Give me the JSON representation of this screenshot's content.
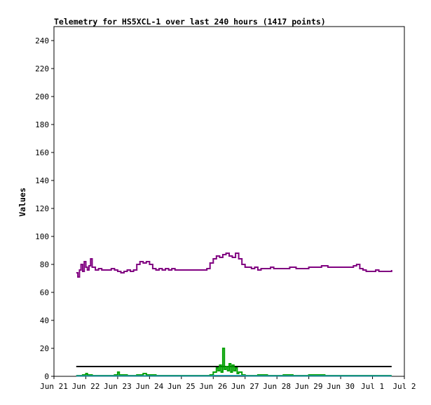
{
  "chart_data": {
    "type": "line",
    "title": "Telemetry for HS5XCL-1 over last 240 hours (1417 points)",
    "xlabel": "",
    "ylabel": "Values",
    "ylim": [
      0,
      250
    ],
    "yticks": [
      0,
      20,
      40,
      60,
      80,
      100,
      120,
      140,
      160,
      180,
      200,
      220,
      240
    ],
    "xlim": [
      0,
      11
    ],
    "xticks": [
      {
        "label": "Jun 21",
        "x": 0
      },
      {
        "label": "Jun 22",
        "x": 1
      },
      {
        "label": "Jun 23",
        "x": 2
      },
      {
        "label": "Jun 24",
        "x": 3
      },
      {
        "label": "Jun 25",
        "x": 4
      },
      {
        "label": "Jun 26",
        "x": 5
      },
      {
        "label": "Jun 27",
        "x": 6
      },
      {
        "label": "Jun 28",
        "x": 7
      },
      {
        "label": "Jun 29",
        "x": 8
      },
      {
        "label": "Jun 30",
        "x": 9
      },
      {
        "label": "Jul 1",
        "x": 10
      },
      {
        "label": "Jul 2",
        "x": 11
      }
    ],
    "grid": false,
    "legend": "none",
    "series": [
      {
        "color": "#800080",
        "points": [
          [
            0.7,
            74
          ],
          [
            0.75,
            71
          ],
          [
            0.8,
            76
          ],
          [
            0.85,
            80
          ],
          [
            0.9,
            75
          ],
          [
            0.95,
            82
          ],
          [
            1.0,
            78
          ],
          [
            1.05,
            76
          ],
          [
            1.1,
            79
          ],
          [
            1.15,
            84
          ],
          [
            1.2,
            78
          ],
          [
            1.3,
            76
          ],
          [
            1.4,
            77
          ],
          [
            1.5,
            76
          ],
          [
            1.6,
            76
          ],
          [
            1.7,
            76
          ],
          [
            1.8,
            77
          ],
          [
            1.9,
            76
          ],
          [
            2.0,
            75
          ],
          [
            2.1,
            74
          ],
          [
            2.2,
            75
          ],
          [
            2.3,
            76
          ],
          [
            2.4,
            75
          ],
          [
            2.5,
            76
          ],
          [
            2.6,
            80
          ],
          [
            2.7,
            82
          ],
          [
            2.8,
            81
          ],
          [
            2.9,
            82
          ],
          [
            3.0,
            80
          ],
          [
            3.1,
            77
          ],
          [
            3.2,
            76
          ],
          [
            3.3,
            77
          ],
          [
            3.4,
            76
          ],
          [
            3.5,
            77
          ],
          [
            3.6,
            76
          ],
          [
            3.7,
            77
          ],
          [
            3.8,
            76
          ],
          [
            3.9,
            76
          ],
          [
            4.0,
            76
          ],
          [
            4.1,
            76
          ],
          [
            4.2,
            76
          ],
          [
            4.3,
            76
          ],
          [
            4.4,
            76
          ],
          [
            4.5,
            76
          ],
          [
            4.6,
            76
          ],
          [
            4.7,
            76
          ],
          [
            4.8,
            77
          ],
          [
            4.9,
            81
          ],
          [
            5.0,
            84
          ],
          [
            5.1,
            86
          ],
          [
            5.2,
            85
          ],
          [
            5.3,
            87
          ],
          [
            5.4,
            88
          ],
          [
            5.5,
            86
          ],
          [
            5.6,
            85
          ],
          [
            5.7,
            88
          ],
          [
            5.8,
            84
          ],
          [
            5.9,
            80
          ],
          [
            6.0,
            78
          ],
          [
            6.1,
            78
          ],
          [
            6.2,
            77
          ],
          [
            6.3,
            78
          ],
          [
            6.4,
            76
          ],
          [
            6.5,
            77
          ],
          [
            6.6,
            77
          ],
          [
            6.7,
            77
          ],
          [
            6.8,
            78
          ],
          [
            6.9,
            77
          ],
          [
            7.0,
            77
          ],
          [
            7.2,
            77
          ],
          [
            7.4,
            78
          ],
          [
            7.6,
            77
          ],
          [
            7.8,
            77
          ],
          [
            8.0,
            78
          ],
          [
            8.2,
            78
          ],
          [
            8.4,
            79
          ],
          [
            8.6,
            78
          ],
          [
            8.8,
            78
          ],
          [
            9.0,
            78
          ],
          [
            9.2,
            78
          ],
          [
            9.4,
            79
          ],
          [
            9.5,
            80
          ],
          [
            9.6,
            77
          ],
          [
            9.7,
            76
          ],
          [
            9.8,
            75
          ],
          [
            9.9,
            75
          ],
          [
            10.0,
            75
          ],
          [
            10.1,
            76
          ],
          [
            10.2,
            75
          ],
          [
            10.3,
            75
          ],
          [
            10.4,
            75
          ],
          [
            10.5,
            75
          ],
          [
            10.6,
            76
          ]
        ]
      },
      {
        "color": "#000000",
        "points": [
          [
            0.7,
            7
          ],
          [
            10.6,
            7
          ]
        ]
      },
      {
        "color": "#00a000",
        "points": [
          [
            0.7,
            0.5
          ],
          [
            0.9,
            1
          ],
          [
            1.0,
            2
          ],
          [
            1.05,
            1
          ],
          [
            1.2,
            0.5
          ],
          [
            1.5,
            0.5
          ],
          [
            1.7,
            0.5
          ],
          [
            1.9,
            1
          ],
          [
            2.0,
            3
          ],
          [
            2.05,
            1
          ],
          [
            2.3,
            0.5
          ],
          [
            2.6,
            1
          ],
          [
            2.8,
            2
          ],
          [
            2.9,
            1
          ],
          [
            3.2,
            0.5
          ],
          [
            3.5,
            0.5
          ],
          [
            4.0,
            0.5
          ],
          [
            4.5,
            0.5
          ],
          [
            4.9,
            1
          ],
          [
            5.0,
            3
          ],
          [
            5.1,
            6
          ],
          [
            5.15,
            4
          ],
          [
            5.2,
            8
          ],
          [
            5.25,
            3
          ],
          [
            5.3,
            20
          ],
          [
            5.35,
            5
          ],
          [
            5.4,
            7
          ],
          [
            5.45,
            4
          ],
          [
            5.5,
            9
          ],
          [
            5.55,
            3
          ],
          [
            5.6,
            8
          ],
          [
            5.65,
            4
          ],
          [
            5.7,
            6
          ],
          [
            5.75,
            2
          ],
          [
            5.8,
            3
          ],
          [
            5.9,
            1
          ],
          [
            6.0,
            0.5
          ],
          [
            6.4,
            1
          ],
          [
            6.7,
            0.5
          ],
          [
            7.2,
            1
          ],
          [
            7.5,
            0.5
          ],
          [
            8.0,
            1
          ],
          [
            8.5,
            0.5
          ],
          [
            9.0,
            0.5
          ],
          [
            9.5,
            0.5
          ],
          [
            10.0,
            0.5
          ],
          [
            10.6,
            0.5
          ]
        ]
      },
      {
        "color": "#2090a0",
        "points": [
          [
            0.7,
            0.3
          ],
          [
            1.5,
            0.3
          ],
          [
            2.5,
            0.3
          ],
          [
            3.5,
            0.3
          ],
          [
            4.5,
            0.3
          ],
          [
            5.0,
            0.5
          ],
          [
            5.5,
            0.5
          ],
          [
            6.0,
            0.3
          ],
          [
            7.0,
            0.3
          ],
          [
            8.0,
            0.3
          ],
          [
            9.0,
            0.3
          ],
          [
            10.0,
            0.3
          ],
          [
            10.6,
            0.3
          ]
        ]
      }
    ]
  }
}
